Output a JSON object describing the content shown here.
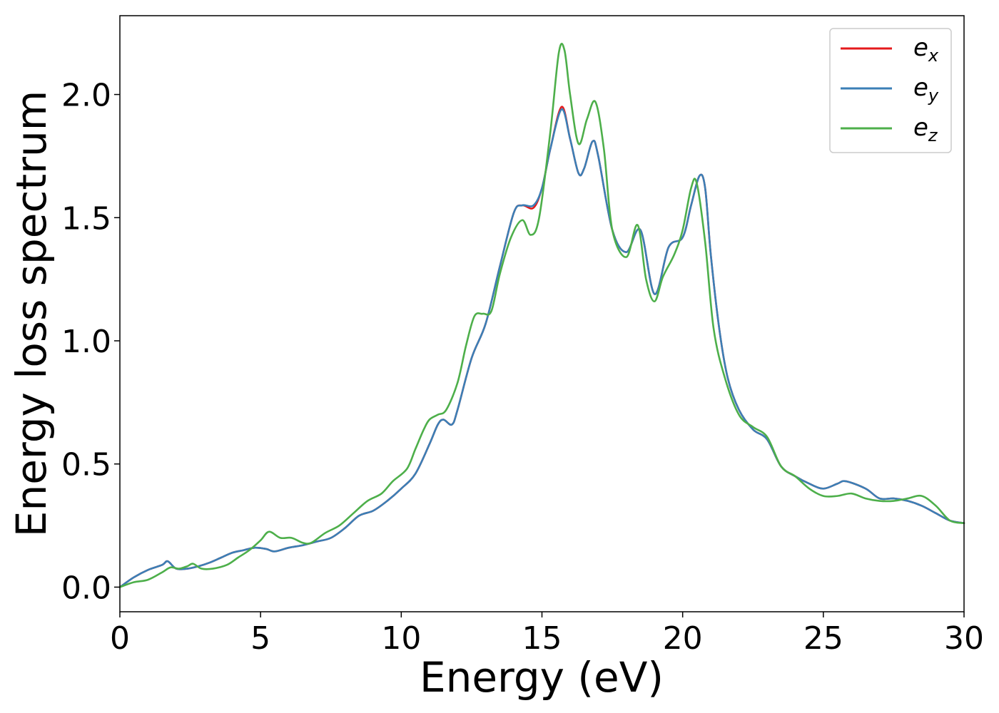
{
  "chart_data": {
    "type": "line",
    "title": "",
    "xlabel": "Energy (eV)",
    "ylabel": "Energy loss spectrum",
    "xlim": [
      0,
      30
    ],
    "ylim": [
      -0.1,
      2.32
    ],
    "xticks": [
      0,
      5,
      10,
      15,
      20,
      25,
      30
    ],
    "yticks": [
      0.0,
      0.5,
      1.0,
      1.5,
      2.0
    ],
    "xtick_labels": [
      "0",
      "5",
      "10",
      "15",
      "20",
      "25",
      "30"
    ],
    "ytick_labels": [
      "0.0",
      "0.5",
      "1.0",
      "1.5",
      "2.0"
    ],
    "grid": false,
    "legend_position": "top-right",
    "series": [
      {
        "name": "e",
        "subscript": "x",
        "color": "#e41a1c",
        "x": [
          0,
          0.5,
          1,
          1.5,
          1.7,
          2.0,
          2.4,
          2.8,
          3.2,
          3.6,
          4.0,
          4.4,
          4.8,
          5.2,
          5.5,
          6,
          6.5,
          7,
          7.5,
          8,
          8.5,
          9,
          9.5,
          10,
          10.5,
          11,
          11.3,
          11.5,
          11.8,
          12,
          12.5,
          13,
          13.5,
          14,
          14.3,
          14.7,
          15,
          15.3,
          15.7,
          16,
          16.3,
          16.5,
          16.8,
          17,
          17.5,
          18,
          18.5,
          19,
          19.5,
          20,
          20.3,
          20.6,
          20.8,
          21,
          21.3,
          21.6,
          22,
          22.5,
          23,
          23.5,
          24,
          24.5,
          25,
          25.5,
          25.8,
          26.5,
          27,
          27.5,
          28,
          28.5,
          29,
          29.5,
          30
        ],
        "values": [
          0.0,
          0.04,
          0.07,
          0.09,
          0.105,
          0.075,
          0.075,
          0.085,
          0.1,
          0.12,
          0.14,
          0.15,
          0.16,
          0.155,
          0.145,
          0.16,
          0.17,
          0.185,
          0.2,
          0.24,
          0.29,
          0.31,
          0.35,
          0.4,
          0.46,
          0.58,
          0.66,
          0.68,
          0.66,
          0.72,
          0.93,
          1.07,
          1.3,
          1.52,
          1.55,
          1.54,
          1.62,
          1.78,
          1.95,
          1.82,
          1.68,
          1.7,
          1.81,
          1.75,
          1.45,
          1.36,
          1.45,
          1.19,
          1.38,
          1.42,
          1.55,
          1.67,
          1.62,
          1.35,
          1.05,
          0.85,
          0.72,
          0.64,
          0.6,
          0.49,
          0.45,
          0.42,
          0.4,
          0.42,
          0.43,
          0.4,
          0.36,
          0.36,
          0.35,
          0.33,
          0.3,
          0.27,
          0.26
        ]
      },
      {
        "name": "e",
        "subscript": "y",
        "color": "#3b7fb6",
        "x": [
          0,
          0.5,
          1,
          1.5,
          1.7,
          2.0,
          2.4,
          2.8,
          3.2,
          3.6,
          4.0,
          4.4,
          4.8,
          5.2,
          5.5,
          6,
          6.5,
          7,
          7.5,
          8,
          8.5,
          9,
          9.5,
          10,
          10.5,
          11,
          11.3,
          11.5,
          11.8,
          12,
          12.5,
          13,
          13.5,
          14,
          14.3,
          14.7,
          15,
          15.3,
          15.7,
          16,
          16.3,
          16.5,
          16.8,
          17,
          17.5,
          18,
          18.5,
          19,
          19.5,
          20,
          20.3,
          20.6,
          20.8,
          21,
          21.3,
          21.6,
          22,
          22.5,
          23,
          23.5,
          24,
          24.5,
          25,
          25.5,
          25.8,
          26.5,
          27,
          27.5,
          28,
          28.5,
          29,
          29.5,
          30
        ],
        "values": [
          0.0,
          0.04,
          0.07,
          0.09,
          0.105,
          0.075,
          0.075,
          0.085,
          0.1,
          0.12,
          0.14,
          0.15,
          0.16,
          0.155,
          0.145,
          0.16,
          0.17,
          0.185,
          0.2,
          0.24,
          0.29,
          0.31,
          0.35,
          0.4,
          0.46,
          0.58,
          0.66,
          0.68,
          0.66,
          0.72,
          0.93,
          1.07,
          1.3,
          1.52,
          1.55,
          1.55,
          1.62,
          1.78,
          1.94,
          1.82,
          1.68,
          1.7,
          1.81,
          1.75,
          1.45,
          1.36,
          1.45,
          1.19,
          1.38,
          1.42,
          1.55,
          1.67,
          1.62,
          1.35,
          1.05,
          0.85,
          0.72,
          0.64,
          0.6,
          0.49,
          0.45,
          0.42,
          0.4,
          0.42,
          0.43,
          0.4,
          0.36,
          0.36,
          0.35,
          0.33,
          0.3,
          0.27,
          0.26
        ]
      },
      {
        "name": "e",
        "subscript": "z",
        "color": "#4daf4a",
        "x": [
          0,
          0.5,
          1,
          1.5,
          1.8,
          2.1,
          2.4,
          2.6,
          2.9,
          3.3,
          3.8,
          4.2,
          4.6,
          5.0,
          5.3,
          5.7,
          6.1,
          6.5,
          6.8,
          7.3,
          7.8,
          8.3,
          8.8,
          9.3,
          9.7,
          10.2,
          10.5,
          10.8,
          11.0,
          11.3,
          11.6,
          12.0,
          12.3,
          12.6,
          12.9,
          13.2,
          13.5,
          13.9,
          14.3,
          14.6,
          14.9,
          15.3,
          15.6,
          15.8,
          16.0,
          16.3,
          16.6,
          16.9,
          17.2,
          17.5,
          18.0,
          18.4,
          18.7,
          19.0,
          19.3,
          19.7,
          20.0,
          20.3,
          20.5,
          20.8,
          21.1,
          21.5,
          22.0,
          22.5,
          23.0,
          23.5,
          24,
          24.5,
          25,
          25.5,
          26,
          26.5,
          27,
          27.5,
          28,
          28.5,
          29,
          29.5,
          30
        ],
        "values": [
          0.0,
          0.02,
          0.03,
          0.06,
          0.08,
          0.075,
          0.085,
          0.095,
          0.075,
          0.075,
          0.09,
          0.12,
          0.15,
          0.19,
          0.225,
          0.2,
          0.2,
          0.18,
          0.18,
          0.22,
          0.25,
          0.3,
          0.35,
          0.38,
          0.43,
          0.48,
          0.56,
          0.64,
          0.68,
          0.7,
          0.72,
          0.83,
          0.98,
          1.1,
          1.11,
          1.12,
          1.27,
          1.42,
          1.49,
          1.43,
          1.5,
          1.85,
          2.17,
          2.18,
          2.0,
          1.8,
          1.9,
          1.97,
          1.78,
          1.45,
          1.34,
          1.47,
          1.25,
          1.16,
          1.26,
          1.35,
          1.45,
          1.62,
          1.64,
          1.4,
          1.05,
          0.85,
          0.7,
          0.65,
          0.61,
          0.49,
          0.45,
          0.4,
          0.37,
          0.37,
          0.38,
          0.36,
          0.35,
          0.35,
          0.36,
          0.37,
          0.33,
          0.27,
          0.26
        ]
      }
    ]
  }
}
